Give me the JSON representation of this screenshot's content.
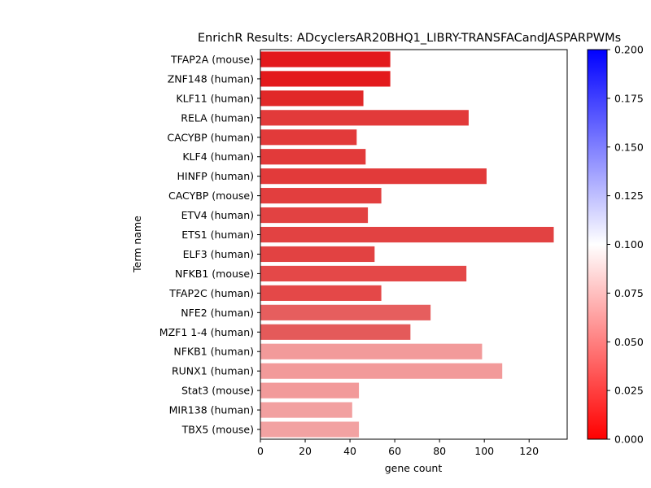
{
  "chart_data": {
    "type": "bar",
    "orientation": "horizontal",
    "title": "EnrichR Results: ADcyclersAR20BHQ1_LIBRY-TRANSFACandJASPARPWMs",
    "xlabel": "gene count",
    "ylabel": "Term name",
    "xlim": [
      0,
      137
    ],
    "xticks": [
      0,
      20,
      40,
      60,
      80,
      100,
      120
    ],
    "grid": false,
    "categories": [
      "TFAP2A (mouse)",
      "ZNF148 (human)",
      "KLF11 (human)",
      "RELA (human)",
      "CACYBP (human)",
      "KLF4 (human)",
      "HINFP (human)",
      "CACYBP (mouse)",
      "ETV4 (human)",
      "ETS1 (human)",
      "ELF3 (human)",
      "NFKB1 (mouse)",
      "TFAP2C (human)",
      "NFE2 (human)",
      "MZF1 1-4 (human)",
      "NFKB1 (human)",
      "RUNX1 (human)",
      "Stat3 (mouse)",
      "MIR138 (human)",
      "TBX5 (mouse)"
    ],
    "values": [
      58,
      58,
      46,
      93,
      43,
      47,
      101,
      54,
      48,
      131,
      51,
      92,
      54,
      76,
      67,
      99,
      108,
      44,
      41,
      44
    ],
    "bar_colors": [
      "#e31a1c",
      "#e31a1c",
      "#e12828",
      "#e23a3a",
      "#e23a3a",
      "#e23a3a",
      "#e23a3a",
      "#e23e3e",
      "#e24242",
      "#e24242",
      "#e24242",
      "#e44848",
      "#e44848",
      "#e65e5e",
      "#e45a5a",
      "#f29a9a",
      "#f29a9a",
      "#f29a9a",
      "#f2a0a0",
      "#f2a2a2"
    ],
    "colorbar": {
      "range": [
        0.0,
        0.2
      ],
      "ticks": [
        "0.000",
        "0.025",
        "0.050",
        "0.075",
        "0.100",
        "0.125",
        "0.150",
        "0.175",
        "0.200"
      ],
      "colormap": [
        "#ff0000",
        "#ffffff",
        "#0000ff"
      ]
    }
  }
}
